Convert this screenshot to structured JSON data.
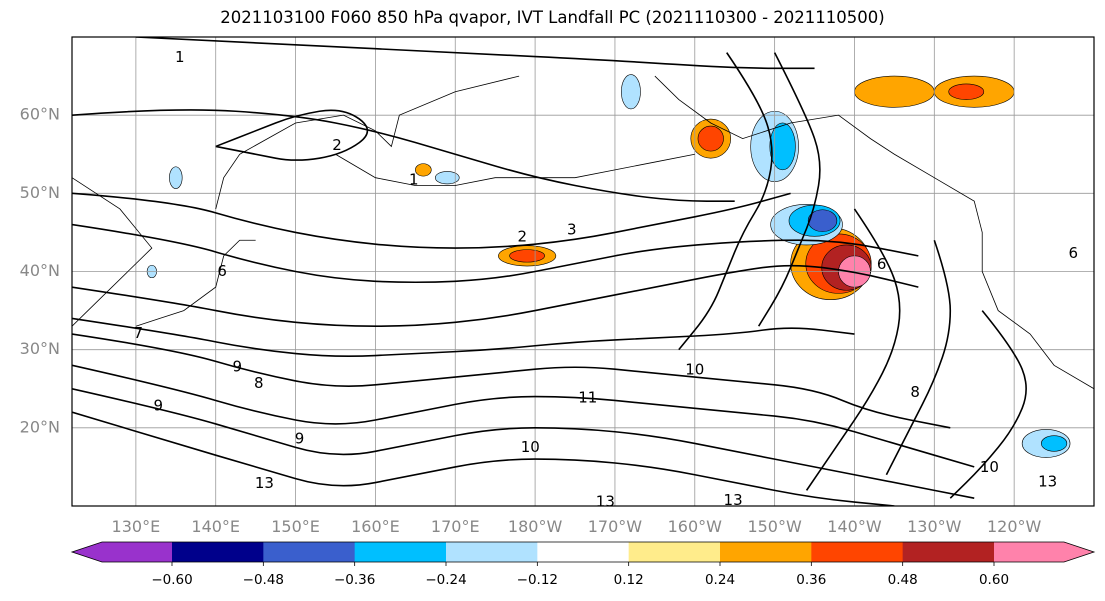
{
  "title": "2021103100 F060 850 hPa qvapor, IVT Landfall PC (2021110300 - 2021110500)",
  "map": {
    "projection": "equirectangular",
    "lon_range_east": [
      122,
      250
    ],
    "lat_range": [
      10,
      70
    ],
    "lat_ticks": [
      {
        "value": 20,
        "label": "20°N"
      },
      {
        "value": 30,
        "label": "30°N"
      },
      {
        "value": 40,
        "label": "40°N"
      },
      {
        "value": 50,
        "label": "50°N"
      },
      {
        "value": 60,
        "label": "60°N"
      }
    ],
    "lon_ticks": [
      {
        "value": 130,
        "label": "130°E"
      },
      {
        "value": 140,
        "label": "140°E"
      },
      {
        "value": 150,
        "label": "150°E"
      },
      {
        "value": 160,
        "label": "160°E"
      },
      {
        "value": 170,
        "label": "170°E"
      },
      {
        "value": 180,
        "label": "180°W"
      },
      {
        "value": 190,
        "label": "170°W"
      },
      {
        "value": 200,
        "label": "160°W"
      },
      {
        "value": 210,
        "label": "150°W"
      },
      {
        "value": 220,
        "label": "140°W"
      },
      {
        "value": 230,
        "label": "130°W"
      },
      {
        "value": 240,
        "label": "120°W"
      }
    ],
    "grid_color": "#999999",
    "contour_color": "#000000"
  },
  "colorbar": {
    "ticks": [
      "−0.60",
      "−0.48",
      "−0.36",
      "−0.24",
      "−0.12",
      "0.12",
      "0.24",
      "0.36",
      "0.48",
      "0.60"
    ],
    "colors": [
      "#9932cc",
      "#00008b",
      "#3a5fcd",
      "#00bfff",
      "#b0e2ff",
      "#ffffff",
      "#ffec8b",
      "#ffa500",
      "#ff4500",
      "#b22222",
      "#ff82ab"
    ]
  },
  "shading": [
    {
      "lon": 217,
      "lat": 41,
      "rx": 5,
      "ry": 4.6,
      "level": 0.24
    },
    {
      "lon": 218,
      "lat": 41,
      "rx": 4.1,
      "ry": 3.8,
      "level": 0.36
    },
    {
      "lon": 219,
      "lat": 40.5,
      "rx": 3.1,
      "ry": 2.9,
      "level": 0.48
    },
    {
      "lon": 220,
      "lat": 40,
      "rx": 2,
      "ry": 2,
      "level": 0.6
    },
    {
      "lon": 214,
      "lat": 46,
      "rx": 4.5,
      "ry": 2.6,
      "level": -0.24
    },
    {
      "lon": 215,
      "lat": 46.5,
      "rx": 3.2,
      "ry": 2,
      "level": -0.36
    },
    {
      "lon": 216,
      "lat": 46.5,
      "rx": 1.8,
      "ry": 1.4,
      "level": -0.48
    },
    {
      "lon": 210,
      "lat": 56,
      "rx": 3,
      "ry": 4.5,
      "level": -0.24
    },
    {
      "lon": 211,
      "lat": 56,
      "rx": 1.6,
      "ry": 3,
      "level": -0.36
    },
    {
      "lon": 202,
      "lat": 57,
      "rx": 2.5,
      "ry": 2.5,
      "level": 0.24
    },
    {
      "lon": 202,
      "lat": 57,
      "rx": 1.6,
      "ry": 1.6,
      "level": 0.36
    },
    {
      "lon": 225,
      "lat": 63,
      "rx": 5,
      "ry": 2,
      "level": 0.24
    },
    {
      "lon": 235,
      "lat": 63,
      "rx": 5,
      "ry": 2,
      "level": 0.24
    },
    {
      "lon": 234,
      "lat": 63,
      "rx": 2.2,
      "ry": 1,
      "level": 0.36
    },
    {
      "lon": 179,
      "lat": 42,
      "rx": 3.6,
      "ry": 1.3,
      "level": 0.24
    },
    {
      "lon": 179,
      "lat": 42,
      "rx": 2.2,
      "ry": 0.8,
      "level": 0.36
    },
    {
      "lon": 244,
      "lat": 18,
      "rx": 3,
      "ry": 1.8,
      "level": -0.24
    },
    {
      "lon": 245,
      "lat": 18,
      "rx": 1.6,
      "ry": 1,
      "level": -0.36
    },
    {
      "lon": 169,
      "lat": 52,
      "rx": 1.5,
      "ry": 0.8,
      "level": -0.24
    },
    {
      "lon": 166,
      "lat": 53,
      "rx": 1,
      "ry": 0.8,
      "level": 0.24
    },
    {
      "lon": 192,
      "lat": 63,
      "rx": 1.2,
      "ry": 2.2,
      "level": -0.24
    },
    {
      "lon": 135,
      "lat": 52,
      "rx": 0.8,
      "ry": 1.4,
      "level": -0.24
    },
    {
      "lon": 132,
      "lat": 40,
      "rx": 0.6,
      "ry": 0.8,
      "level": -0.24
    }
  ],
  "contours": [
    [
      [
        122,
        60
      ],
      [
        135,
        61
      ],
      [
        150,
        60
      ],
      [
        160,
        58
      ],
      [
        170,
        55
      ],
      [
        180,
        52
      ],
      [
        190,
        50
      ],
      [
        198,
        49
      ],
      [
        205,
        49
      ]
    ],
    [
      [
        122,
        50
      ],
      [
        135,
        49
      ],
      [
        145,
        46
      ],
      [
        155,
        44
      ],
      [
        165,
        43
      ],
      [
        175,
        43
      ],
      [
        185,
        44
      ],
      [
        195,
        46
      ],
      [
        205,
        48
      ],
      [
        212,
        50
      ]
    ],
    [
      [
        122,
        46
      ],
      [
        135,
        44
      ],
      [
        145,
        41
      ],
      [
        155,
        39
      ],
      [
        165,
        38.5
      ],
      [
        175,
        39
      ],
      [
        185,
        41
      ],
      [
        195,
        43
      ],
      [
        208,
        44
      ],
      [
        218,
        44
      ],
      [
        228,
        42
      ]
    ],
    [
      [
        122,
        38
      ],
      [
        135,
        36
      ],
      [
        145,
        34
      ],
      [
        155,
        33
      ],
      [
        165,
        33
      ],
      [
        175,
        34
      ],
      [
        185,
        36
      ],
      [
        195,
        38
      ],
      [
        205,
        40
      ],
      [
        212,
        41
      ],
      [
        220,
        40
      ],
      [
        228,
        38
      ]
    ],
    [
      [
        122,
        34
      ],
      [
        135,
        32
      ],
      [
        145,
        30
      ],
      [
        155,
        29
      ],
      [
        165,
        29.5
      ],
      [
        175,
        30
      ],
      [
        185,
        31
      ],
      [
        195,
        31.5
      ],
      [
        205,
        32
      ],
      [
        212,
        33
      ],
      [
        220,
        32
      ]
    ],
    [
      [
        122,
        32
      ],
      [
        135,
        30
      ],
      [
        145,
        27
      ],
      [
        155,
        25
      ],
      [
        165,
        26
      ],
      [
        175,
        27
      ],
      [
        185,
        28
      ],
      [
        195,
        27
      ],
      [
        205,
        26
      ],
      [
        215,
        25
      ],
      [
        222,
        22
      ],
      [
        232,
        20
      ]
    ],
    [
      [
        122,
        28
      ],
      [
        135,
        25
      ],
      [
        145,
        22
      ],
      [
        155,
        20
      ],
      [
        165,
        22
      ],
      [
        175,
        24
      ],
      [
        185,
        24
      ],
      [
        195,
        23
      ],
      [
        205,
        22
      ],
      [
        215,
        21
      ],
      [
        225,
        18
      ],
      [
        235,
        15
      ]
    ],
    [
      [
        122,
        25
      ],
      [
        135,
        22
      ],
      [
        145,
        19
      ],
      [
        155,
        16
      ],
      [
        165,
        18
      ],
      [
        175,
        20
      ],
      [
        185,
        20
      ],
      [
        195,
        19
      ],
      [
        205,
        17
      ],
      [
        215,
        15
      ],
      [
        225,
        13
      ],
      [
        235,
        11
      ]
    ],
    [
      [
        122,
        22
      ],
      [
        135,
        18
      ],
      [
        145,
        15
      ],
      [
        155,
        12
      ],
      [
        165,
        14
      ],
      [
        175,
        16
      ],
      [
        185,
        16
      ],
      [
        195,
        15
      ],
      [
        205,
        13
      ],
      [
        215,
        11
      ],
      [
        225,
        10
      ]
    ],
    [
      [
        130,
        70
      ],
      [
        150,
        69
      ],
      [
        170,
        68
      ],
      [
        190,
        67
      ],
      [
        205,
        66
      ],
      [
        215,
        66
      ]
    ],
    [
      [
        204,
        68
      ],
      [
        208,
        62
      ],
      [
        210,
        56
      ],
      [
        209,
        50
      ],
      [
        206,
        45
      ],
      [
        204,
        40
      ],
      [
        202,
        35
      ],
      [
        198,
        30
      ]
    ],
    [
      [
        210,
        68
      ],
      [
        214,
        60
      ],
      [
        216,
        54
      ],
      [
        215,
        48
      ],
      [
        213,
        43
      ],
      [
        211,
        38
      ],
      [
        208,
        33
      ]
    ],
    [
      [
        220,
        48
      ],
      [
        224,
        42
      ],
      [
        226,
        36
      ],
      [
        225,
        30
      ],
      [
        222,
        24
      ],
      [
        218,
        18
      ],
      [
        214,
        12
      ]
    ],
    [
      [
        230,
        44
      ],
      [
        232,
        38
      ],
      [
        232,
        32
      ],
      [
        230,
        26
      ],
      [
        227,
        20
      ],
      [
        224,
        14
      ]
    ],
    [
      [
        236,
        35
      ],
      [
        240,
        30
      ],
      [
        242,
        25
      ],
      [
        240,
        20
      ],
      [
        236,
        15
      ],
      [
        232,
        11
      ]
    ],
    [
      [
        140,
        56
      ],
      [
        145,
        55
      ],
      [
        150,
        54
      ],
      [
        156,
        55
      ],
      [
        160,
        58
      ],
      [
        156,
        61
      ],
      [
        150,
        60
      ],
      [
        145,
        58
      ],
      [
        140,
        56
      ]
    ]
  ],
  "contour_labels": [
    {
      "lon": 135.5,
      "lat": 67.4,
      "text": "1"
    },
    {
      "lon": 155.2,
      "lat": 56.1,
      "text": "2"
    },
    {
      "lon": 164.8,
      "lat": 51.7,
      "text": "1"
    },
    {
      "lon": 184.6,
      "lat": 45.3,
      "text": "3"
    },
    {
      "lon": 178.4,
      "lat": 44.4,
      "text": "2"
    },
    {
      "lon": 223.4,
      "lat": 40.9,
      "text": "6"
    },
    {
      "lon": 247.4,
      "lat": 42.3,
      "text": "6"
    },
    {
      "lon": 140.8,
      "lat": 40.0,
      "text": "6"
    },
    {
      "lon": 130.3,
      "lat": 32.1,
      "text": "7"
    },
    {
      "lon": 142.7,
      "lat": 27.8,
      "text": "9"
    },
    {
      "lon": 145.4,
      "lat": 25.7,
      "text": "8"
    },
    {
      "lon": 132.8,
      "lat": 22.8,
      "text": "9"
    },
    {
      "lon": 150.5,
      "lat": 18.6,
      "text": "9"
    },
    {
      "lon": 146.1,
      "lat": 12.9,
      "text": "13"
    },
    {
      "lon": 179.4,
      "lat": 17.5,
      "text": "10"
    },
    {
      "lon": 186.6,
      "lat": 23.8,
      "text": "11"
    },
    {
      "lon": 200.0,
      "lat": 27.4,
      "text": "10"
    },
    {
      "lon": 188.8,
      "lat": 10.5,
      "text": "13"
    },
    {
      "lon": 204.8,
      "lat": 10.7,
      "text": "13"
    },
    {
      "lon": 236.9,
      "lat": 14.9,
      "text": "10"
    },
    {
      "lon": 227.6,
      "lat": 24.5,
      "text": "8"
    },
    {
      "lon": 244.2,
      "lat": 13.1,
      "text": "13"
    }
  ]
}
